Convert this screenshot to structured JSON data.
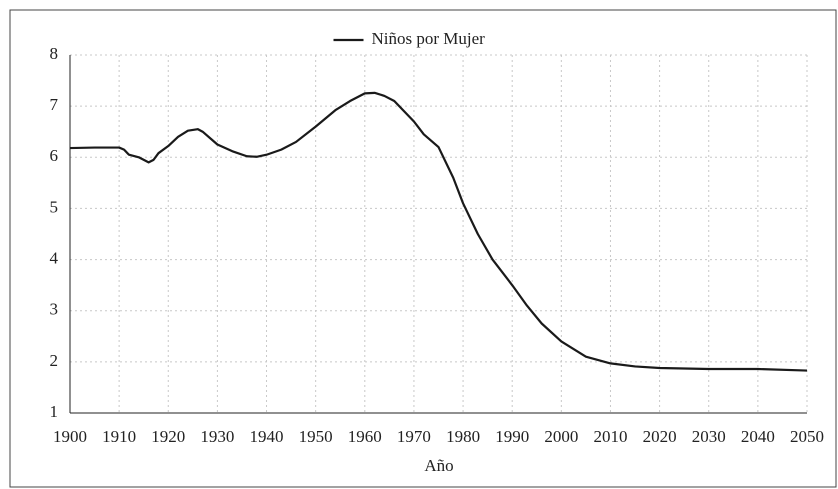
{
  "chart_data": {
    "type": "line",
    "x_label": "Año",
    "legend": "top-center",
    "grid": true,
    "xlim": [
      1900,
      2050
    ],
    "xticks": [
      1900,
      1910,
      1920,
      1930,
      1940,
      1950,
      1960,
      1970,
      1980,
      1990,
      2000,
      2010,
      2020,
      2030,
      2040,
      2050
    ],
    "ylim": [
      1,
      8
    ],
    "yticks": [
      1,
      2,
      3,
      4,
      5,
      6,
      7,
      8
    ],
    "x": [
      1900,
      1905,
      1910,
      1911,
      1912,
      1914,
      1916,
      1917,
      1918,
      1920,
      1922,
      1924,
      1926,
      1927,
      1930,
      1933,
      1936,
      1938,
      1940,
      1943,
      1946,
      1950,
      1954,
      1957,
      1960,
      1962,
      1964,
      1966,
      1968,
      1970,
      1972,
      1975,
      1978,
      1980,
      1983,
      1986,
      1990,
      1993,
      1996,
      2000,
      2005,
      2010,
      2015,
      2020,
      2030,
      2040,
      2050
    ],
    "series": [
      {
        "name": "Niños por Mujer",
        "color": "#1a1a1a",
        "values": [
          6.18,
          6.19,
          6.19,
          6.15,
          6.05,
          6.0,
          5.9,
          5.95,
          6.08,
          6.22,
          6.4,
          6.52,
          6.55,
          6.5,
          6.25,
          6.12,
          6.02,
          6.01,
          6.05,
          6.15,
          6.3,
          6.6,
          6.92,
          7.1,
          7.25,
          7.26,
          7.2,
          7.1,
          6.9,
          6.7,
          6.45,
          6.2,
          5.6,
          5.1,
          4.5,
          4.0,
          3.5,
          3.1,
          2.75,
          2.4,
          2.1,
          1.97,
          1.91,
          1.88,
          1.86,
          1.86,
          1.83
        ]
      }
    ]
  }
}
